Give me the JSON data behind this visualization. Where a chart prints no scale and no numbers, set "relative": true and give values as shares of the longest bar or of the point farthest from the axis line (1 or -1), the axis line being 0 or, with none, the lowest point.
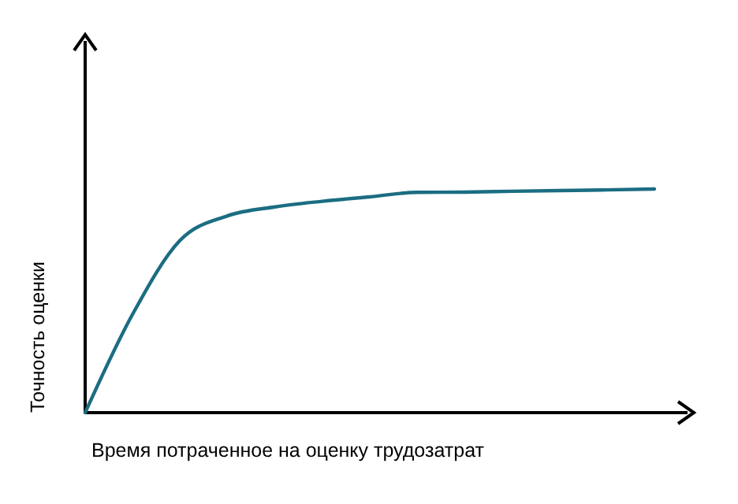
{
  "chart_data": {
    "type": "line",
    "relative": true,
    "xlabel": "Время потраченное на оценку трудозатрат",
    "ylabel": "Точность оценки",
    "categories": [
      null,
      null,
      null,
      null,
      null,
      null,
      null,
      null,
      null,
      null,
      null,
      null,
      null
    ],
    "series": [
      {
        "color": "#1b6d82",
        "values": [
          0,
          0.44,
          0.77,
          0.88,
          0.92,
          0.945,
          0.965,
          0.985,
          0.986,
          0.99,
          0.993,
          0.996,
          1
        ]
      }
    ],
    "marker": "none",
    "line_style": "solid"
  }
}
